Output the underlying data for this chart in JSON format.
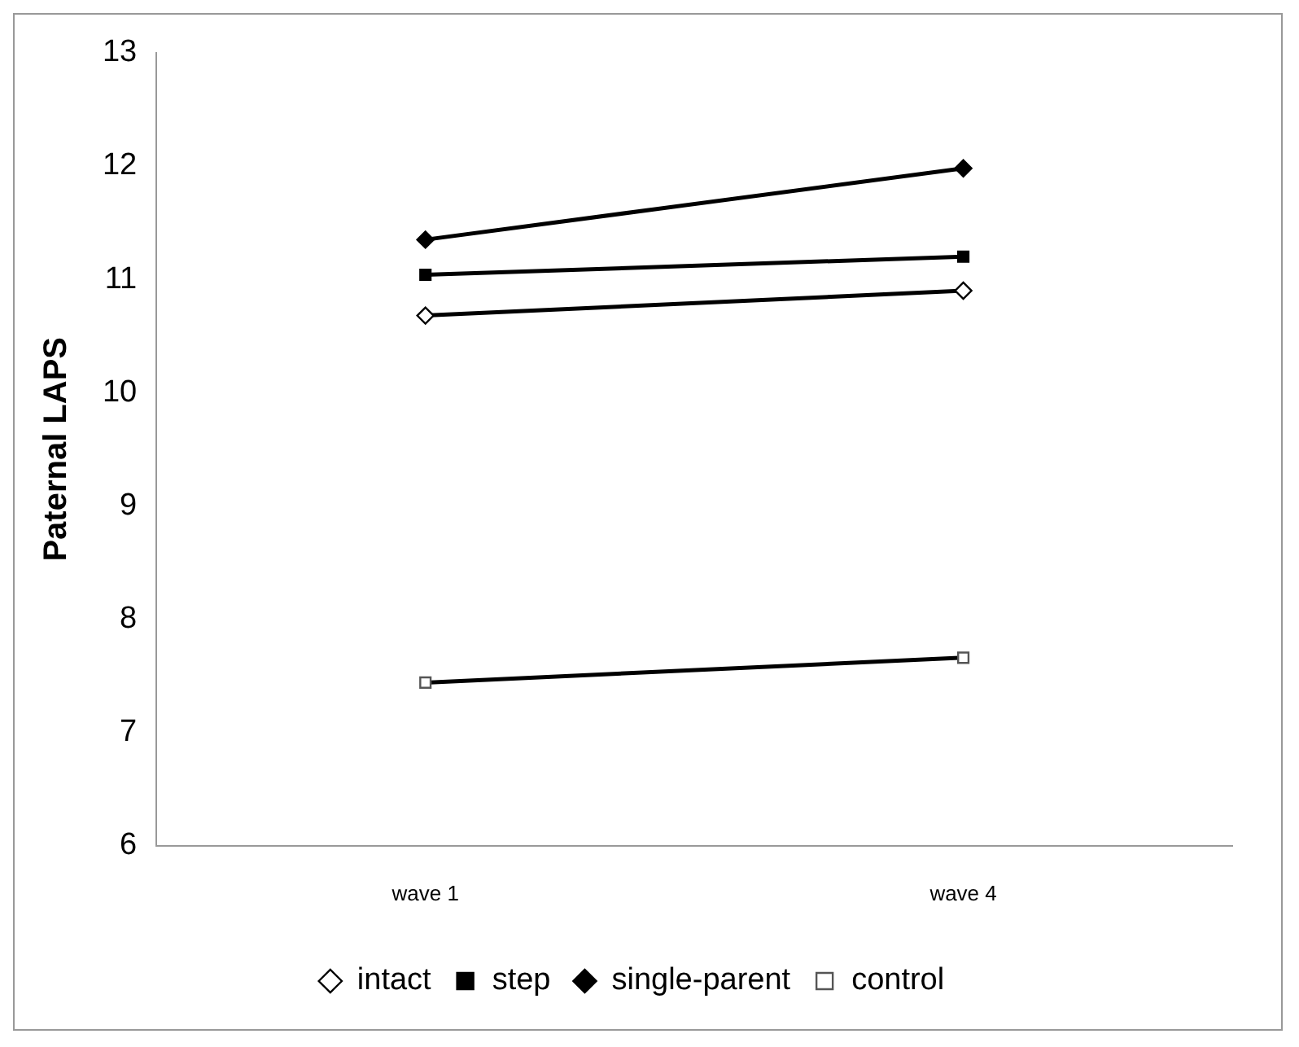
{
  "chart_data": {
    "type": "line",
    "ylabel": "Paternal LAPS",
    "categories": [
      "wave 1",
      "wave 4"
    ],
    "series": [
      {
        "name": "intact",
        "color": "#000000",
        "values": [
          10.68,
          10.9
        ],
        "marker": "diamond"
      },
      {
        "name": "step",
        "color": "#000000",
        "values": [
          11.04,
          11.2
        ],
        "marker": "square"
      },
      {
        "name": "single-parent",
        "color": "#000000",
        "values": [
          11.35,
          11.98
        ],
        "marker": "diamond"
      },
      {
        "name": "control",
        "color": "#000000",
        "values": [
          7.44,
          7.66
        ],
        "marker": "square"
      }
    ],
    "ylim": [
      6,
      13
    ],
    "yticks": [
      6,
      7,
      8,
      9,
      10,
      11,
      12,
      13
    ],
    "grid": false,
    "legend": "bottom"
  }
}
